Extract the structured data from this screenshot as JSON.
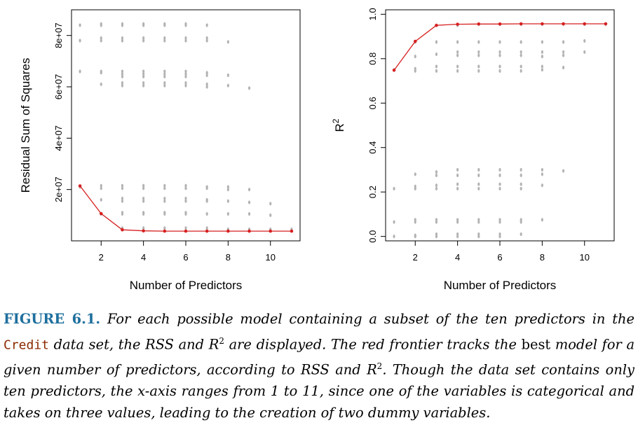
{
  "chart_data": [
    {
      "type": "scatter",
      "title": "",
      "xlabel": "Number of Predictors",
      "ylabel": "Residual Sum of Squares",
      "xlim": [
        0.6,
        11.4
      ],
      "ylim": [
        0,
        90000000
      ],
      "xticks": [
        2,
        4,
        6,
        8,
        10
      ],
      "yticks": [
        20000000,
        40000000,
        60000000,
        80000000
      ],
      "ytick_labels": [
        "2e+07",
        "4e+07",
        "6e+07",
        "8e+07"
      ],
      "grid": false,
      "point_color": "#b3b3b3",
      "frontier_color": "#d62020",
      "points": {
        "1": [
          84000000,
          78000000,
          66000000,
          21000000
        ],
        "2": [
          84500000,
          84000000,
          79000000,
          78000000,
          66000000,
          65500000,
          61000000,
          21500000,
          20500000,
          16000000,
          10500000
        ],
        "3": [
          84500000,
          84000000,
          79000000,
          78000000,
          66000000,
          65000000,
          64000000,
          61500000,
          60500000,
          21500000,
          20500000,
          16500000,
          15500000,
          11000000,
          10500000,
          5000000
        ],
        "4": [
          84500000,
          84000000,
          79000000,
          78000000,
          66000000,
          65000000,
          64000000,
          61500000,
          60500000,
          21500000,
          20500000,
          16500000,
          15500000,
          11000000,
          10500000,
          5000000
        ],
        "5": [
          84500000,
          84000000,
          79000000,
          78000000,
          66000000,
          65000000,
          64000000,
          61500000,
          60500000,
          21500000,
          20500000,
          16500000,
          15500000,
          11000000,
          10500000,
          5000000
        ],
        "6": [
          84500000,
          84000000,
          79000000,
          78000000,
          66000000,
          65000000,
          64000000,
          61500000,
          60500000,
          21500000,
          20500000,
          16500000,
          15500000,
          11000000,
          10500000,
          5000000
        ],
        "7": [
          84000000,
          79000000,
          78000000,
          65500000,
          64500000,
          61000000,
          60000000,
          21000000,
          20500000,
          16000000,
          15500000,
          10500000,
          5000000
        ],
        "8": [
          77500000,
          64500000,
          60500000,
          21000000,
          20000000,
          15500000,
          10500000,
          4500000
        ],
        "9": [
          59500000,
          20000000,
          15000000,
          10500000,
          4500000
        ],
        "10": [
          14500000,
          10000000,
          4500000
        ],
        "11": [
          4500000
        ]
      },
      "frontier": {
        "x": [
          1,
          2,
          3,
          4,
          5,
          6,
          7,
          8,
          9,
          10,
          11
        ],
        "y": [
          21400000,
          10600000,
          4300000,
          3900000,
          3800000,
          3800000,
          3800000,
          3800000,
          3800000,
          3800000,
          3800000
        ]
      }
    },
    {
      "type": "scatter",
      "title": "",
      "xlabel": "Number of Predictors",
      "ylabel": "R",
      "ylabel_superscript": "2",
      "xlim": [
        0.6,
        11.4
      ],
      "ylim": [
        -0.02,
        1.02
      ],
      "xticks": [
        2,
        4,
        6,
        8,
        10
      ],
      "yticks": [
        0.0,
        0.2,
        0.4,
        0.6,
        0.8,
        1.0
      ],
      "ytick_labels": [
        "0.0",
        "0.2",
        "0.4",
        "0.6",
        "0.8",
        "1.0"
      ],
      "grid": false,
      "point_color": "#b3b3b3",
      "frontier_color": "#d62020",
      "points": {
        "1": [
          0.75,
          0.215,
          0.065,
          0.0
        ],
        "2": [
          0.875,
          0.81,
          0.755,
          0.745,
          0.28,
          0.225,
          0.215,
          0.075,
          0.065,
          0.005,
          0.0
        ],
        "3": [
          0.95,
          0.875,
          0.82,
          0.765,
          0.745,
          0.29,
          0.275,
          0.23,
          0.215,
          0.075,
          0.065,
          0.01,
          0.0
        ],
        "4": [
          0.95,
          0.875,
          0.83,
          0.815,
          0.765,
          0.745,
          0.3,
          0.275,
          0.235,
          0.215,
          0.075,
          0.065,
          0.01,
          0.0
        ],
        "5": [
          0.955,
          0.875,
          0.83,
          0.815,
          0.765,
          0.745,
          0.3,
          0.275,
          0.235,
          0.215,
          0.075,
          0.065,
          0.01,
          0.0
        ],
        "6": [
          0.955,
          0.875,
          0.83,
          0.815,
          0.765,
          0.745,
          0.3,
          0.275,
          0.235,
          0.215,
          0.075,
          0.065,
          0.01,
          0.0
        ],
        "7": [
          0.955,
          0.875,
          0.83,
          0.815,
          0.765,
          0.745,
          0.3,
          0.275,
          0.235,
          0.215,
          0.075,
          0.065,
          0.01
        ],
        "8": [
          0.955,
          0.875,
          0.83,
          0.81,
          0.765,
          0.75,
          0.3,
          0.28,
          0.23,
          0.075
        ],
        "9": [
          0.955,
          0.875,
          0.83,
          0.815,
          0.76,
          0.295
        ],
        "10": [
          0.955,
          0.88,
          0.83
        ],
        "11": [
          0.955
        ]
      },
      "frontier": {
        "x": [
          1,
          2,
          3,
          4,
          5,
          6,
          7,
          8,
          9,
          10,
          11
        ],
        "y": [
          0.748,
          0.878,
          0.95,
          0.955,
          0.956,
          0.956,
          0.957,
          0.957,
          0.957,
          0.957,
          0.957
        ]
      }
    }
  ],
  "caption": {
    "figure_label": "FIGURE 6.1.",
    "part1": " For each possible model containing a subset of the ten predictors in the ",
    "dataset": "Credit",
    "part2": " data set, the RSS and ",
    "r_symbol": "R",
    "r_sup": "2",
    "part3": " are displayed. The red frontier tracks the ",
    "best_word": "best",
    "part4": " model for a given number of predictors, according to RSS and ",
    "r_symbol_2": "R",
    "r_sup_2": "2",
    "part5": ". Though the data set contains only ten predictors, the ",
    "x_word": "x",
    "part6": "-axis ranges from 1 to 11, since one of the variables is categorical and takes on three values, leading to the creation of two dummy variables."
  }
}
